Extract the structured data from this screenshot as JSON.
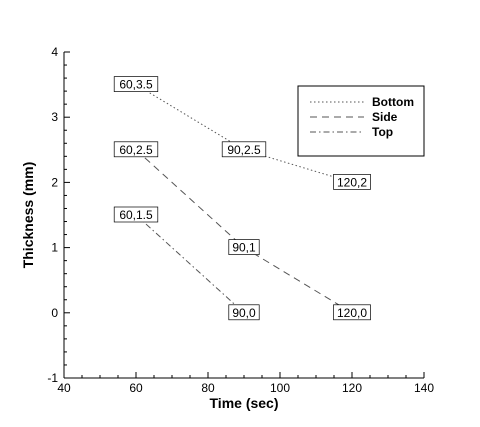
{
  "chart_data": {
    "type": "line",
    "xlabel": "Time (sec)",
    "ylabel": "Thickness (mm)",
    "xlim": [
      40,
      140
    ],
    "ylim": [
      -1,
      4
    ],
    "xticks": [
      40,
      60,
      80,
      100,
      120,
      140
    ],
    "yticks": [
      -1,
      0,
      1,
      2,
      3,
      4
    ],
    "grid": false,
    "legend_position": "top-right",
    "series": [
      {
        "name": "Bottom",
        "line_style": "dotted",
        "color": "#555555",
        "x": [
          60,
          90,
          120
        ],
        "y": [
          3.5,
          2.5,
          2
        ],
        "labels": [
          "60,3.5",
          "90,2.5",
          "120,2"
        ]
      },
      {
        "name": "Side",
        "line_style": "dashed",
        "color": "#555555",
        "x": [
          60,
          90,
          120
        ],
        "y": [
          2.5,
          1,
          0
        ],
        "labels": [
          "60,2.5",
          "90,1",
          "120,0"
        ]
      },
      {
        "name": "Top",
        "line_style": "dash-dot",
        "color": "#555555",
        "x": [
          60,
          90
        ],
        "y": [
          1.5,
          0
        ],
        "labels": [
          "60,1.5",
          "90,0"
        ]
      }
    ]
  }
}
